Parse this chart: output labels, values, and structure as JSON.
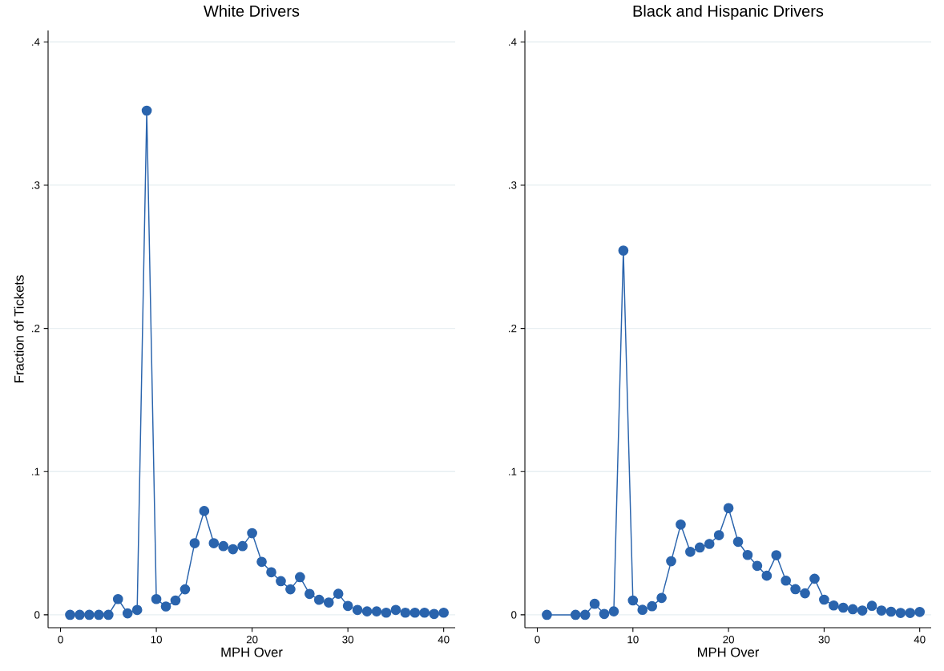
{
  "chart_data": [
    {
      "type": "line",
      "title": "White Drivers",
      "xlabel": "MPH Over",
      "ylabel": "Fraction of Tickets",
      "color": "#2a64ad",
      "marker": "circle",
      "line_style": "solid",
      "grid": "y",
      "x": [
        1,
        2,
        3,
        4,
        5,
        6,
        7,
        8,
        9,
        10,
        11,
        12,
        13,
        14,
        15,
        16,
        17,
        18,
        19,
        20,
        21,
        22,
        23,
        24,
        25,
        26,
        27,
        28,
        29,
        30,
        31,
        32,
        33,
        34,
        35,
        36,
        37,
        38,
        39,
        40
      ],
      "values": [
        0,
        0,
        0,
        0,
        0,
        0.011,
        0.001,
        0.0034,
        0.352,
        0.011,
        0.0058,
        0.01,
        0.0178,
        0.05,
        0.0725,
        0.05,
        0.048,
        0.0458,
        0.048,
        0.057,
        0.037,
        0.0297,
        0.0235,
        0.0178,
        0.0263,
        0.0146,
        0.0105,
        0.0086,
        0.0147,
        0.0062,
        0.0034,
        0.0024,
        0.0024,
        0.0015,
        0.0034,
        0.0015,
        0.0015,
        0.0015,
        0.0006,
        0.0015
      ],
      "xlim": [
        -1.3,
        41.2
      ],
      "ylim": [
        -0.009,
        0.408
      ],
      "xticks": [
        0,
        10,
        20,
        30,
        40
      ],
      "yticks": [
        0,
        {
          "value": 0.1,
          "label": ".1"
        },
        {
          "value": 0.2,
          "label": ".2"
        },
        {
          "value": 0.3,
          "label": ".3"
        },
        {
          "value": 0.4,
          "label": ".4"
        }
      ]
    },
    {
      "type": "line",
      "title": "Black and Hispanic Drivers",
      "xlabel": "MPH Over",
      "color": "#2a64ad",
      "marker": "circle",
      "line_style": "solid",
      "grid": "y",
      "x": [
        1,
        4,
        5,
        6,
        7,
        8,
        9,
        10,
        11,
        12,
        13,
        14,
        15,
        16,
        17,
        18,
        19,
        20,
        21,
        22,
        23,
        24,
        25,
        26,
        27,
        28,
        29,
        30,
        31,
        32,
        33,
        34,
        35,
        36,
        37,
        38,
        39,
        40
      ],
      "values": [
        0,
        0,
        0,
        0.0077,
        0.0006,
        0.0024,
        0.2543,
        0.01,
        0.0035,
        0.006,
        0.0118,
        0.0374,
        0.063,
        0.044,
        0.047,
        0.0495,
        0.0556,
        0.0745,
        0.051,
        0.0418,
        0.0342,
        0.0273,
        0.0416,
        0.0239,
        0.0179,
        0.015,
        0.0252,
        0.0106,
        0.0065,
        0.005,
        0.0039,
        0.003,
        0.0063,
        0.003,
        0.0022,
        0.0013,
        0.0013,
        0.002
      ],
      "xlim": [
        -1.3,
        41.2
      ],
      "ylim": [
        -0.009,
        0.408
      ],
      "xticks": [
        0,
        10,
        20,
        30,
        40
      ],
      "yticks": [
        0,
        {
          "value": 0.1,
          "label": ".1"
        },
        {
          "value": 0.2,
          "label": ".2"
        },
        {
          "value": 0.3,
          "label": ".3"
        },
        {
          "value": 0.4,
          "label": ".4"
        }
      ]
    }
  ]
}
